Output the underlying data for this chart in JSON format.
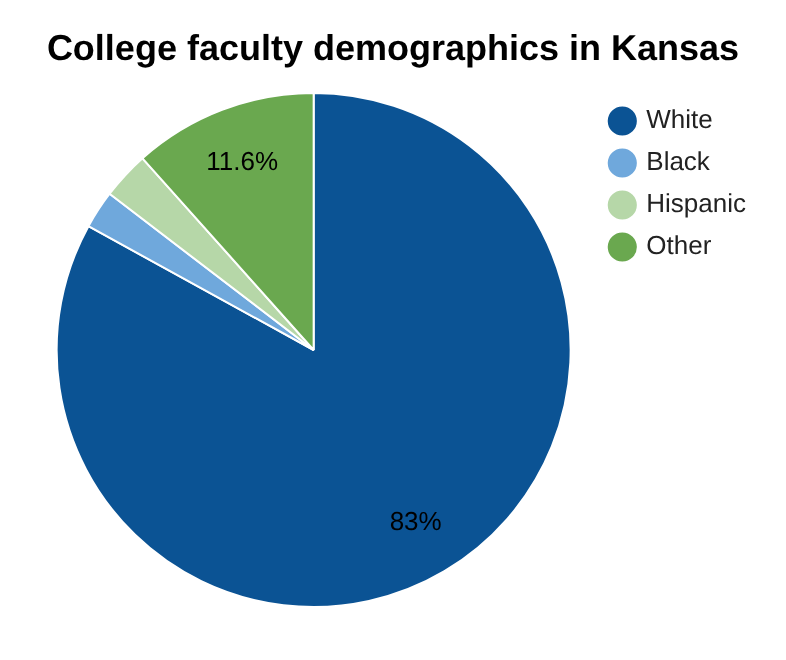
{
  "chart_data": {
    "type": "pie",
    "title": "College faculty demographics in Kansas",
    "categories": [
      "White",
      "Black",
      "Hispanic",
      "Other"
    ],
    "values": [
      83,
      2.4,
      3,
      11.6
    ],
    "colors": [
      "#0b5394",
      "#6fa8dc",
      "#b6d7a8",
      "#6aa84f"
    ],
    "value_labels": [
      "83%",
      null,
      null,
      "11.6%"
    ],
    "legend": "top right"
  }
}
